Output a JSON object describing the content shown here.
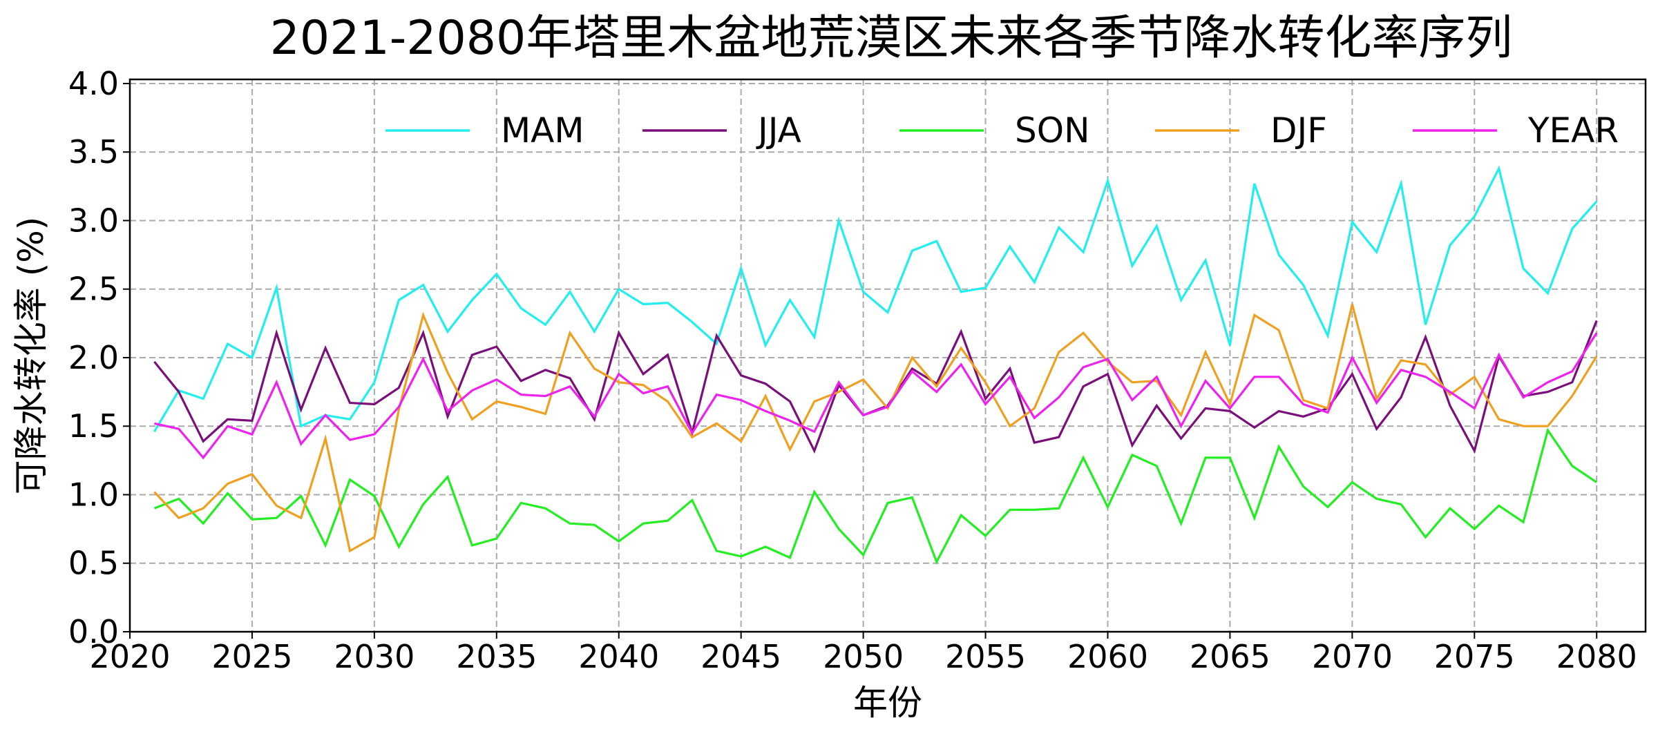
{
  "chart_data": {
    "type": "line",
    "title": "2021-2080年塔里木盆地荒漠区未来各季节降水转化率序列",
    "xlabel": "年份",
    "ylabel": "可降水转化率 (%)",
    "xlim": [
      2020,
      2082
    ],
    "ylim": [
      0,
      4.03
    ],
    "xticks": [
      2020,
      2025,
      2030,
      2035,
      2040,
      2045,
      2050,
      2055,
      2060,
      2065,
      2070,
      2075,
      2080
    ],
    "yticks": [
      "0.0",
      "0.5",
      "1.0",
      "1.5",
      "2.0",
      "2.5",
      "3.0",
      "3.5",
      "4.0"
    ],
    "grid": true,
    "legend_placement": "top",
    "x": [
      2021,
      2022,
      2023,
      2024,
      2025,
      2026,
      2027,
      2028,
      2029,
      2030,
      2031,
      2032,
      2033,
      2034,
      2035,
      2036,
      2037,
      2038,
      2039,
      2040,
      2041,
      2042,
      2043,
      2044,
      2045,
      2046,
      2047,
      2048,
      2049,
      2050,
      2051,
      2052,
      2053,
      2054,
      2055,
      2056,
      2057,
      2058,
      2059,
      2060,
      2061,
      2062,
      2063,
      2064,
      2065,
      2066,
      2067,
      2068,
      2069,
      2070,
      2071,
      2072,
      2073,
      2074,
      2075,
      2076,
      2077,
      2078,
      2079,
      2080
    ],
    "series": [
      {
        "name": "MAM",
        "color": "#22eeee",
        "values": [
          1.46,
          1.76,
          1.7,
          2.1,
          2.0,
          2.51,
          1.5,
          1.58,
          1.55,
          1.82,
          2.42,
          2.53,
          2.19,
          2.42,
          2.61,
          2.36,
          2.24,
          2.48,
          2.19,
          2.5,
          2.39,
          2.4,
          2.26,
          2.1,
          2.65,
          2.09,
          2.42,
          2.15,
          3.0,
          2.48,
          2.33,
          2.78,
          2.85,
          2.48,
          2.51,
          2.81,
          2.55,
          2.95,
          2.77,
          3.29,
          2.67,
          2.96,
          2.42,
          2.71,
          2.09,
          3.27,
          2.75,
          2.53,
          2.16,
          2.99,
          2.77,
          3.27,
          2.24,
          2.82,
          3.03,
          3.38,
          2.65,
          2.47,
          2.94,
          3.14
        ]
      },
      {
        "name": "JJA",
        "color": "#7a0e7a",
        "values": [
          1.97,
          1.75,
          1.39,
          1.55,
          1.54,
          2.18,
          1.62,
          2.07,
          1.67,
          1.66,
          1.78,
          2.18,
          1.57,
          2.02,
          2.08,
          1.83,
          1.91,
          1.85,
          1.55,
          2.18,
          1.88,
          2.02,
          1.45,
          2.16,
          1.87,
          1.81,
          1.68,
          1.32,
          1.8,
          1.58,
          1.65,
          1.92,
          1.81,
          2.19,
          1.7,
          1.92,
          1.38,
          1.42,
          1.79,
          1.88,
          1.36,
          1.65,
          1.41,
          1.63,
          1.61,
          1.49,
          1.61,
          1.57,
          1.63,
          1.88,
          1.48,
          1.71,
          2.15,
          1.65,
          1.32,
          2.01,
          1.72,
          1.75,
          1.82,
          2.27
        ]
      },
      {
        "name": "SON",
        "color": "#22ee22",
        "values": [
          0.9,
          0.97,
          0.79,
          1.01,
          0.82,
          0.83,
          0.99,
          0.63,
          1.11,
          0.99,
          0.62,
          0.93,
          1.13,
          0.63,
          0.68,
          0.94,
          0.9,
          0.79,
          0.78,
          0.66,
          0.79,
          0.81,
          0.96,
          0.59,
          0.55,
          0.62,
          0.54,
          1.02,
          0.75,
          0.56,
          0.94,
          0.98,
          0.51,
          0.85,
          0.7,
          0.89,
          0.89,
          0.9,
          1.27,
          0.91,
          1.29,
          1.21,
          0.79,
          1.27,
          1.27,
          0.83,
          1.35,
          1.06,
          0.91,
          1.09,
          0.97,
          0.93,
          0.69,
          0.9,
          0.75,
          0.92,
          0.8,
          1.47,
          1.21,
          1.09
        ]
      },
      {
        "name": "DJF",
        "color": "#f0a020",
        "values": [
          1.02,
          0.83,
          0.9,
          1.08,
          1.15,
          0.92,
          0.83,
          1.41,
          0.59,
          0.69,
          1.62,
          2.31,
          1.89,
          1.55,
          1.68,
          1.64,
          1.59,
          2.18,
          1.92,
          1.82,
          1.8,
          1.68,
          1.42,
          1.52,
          1.39,
          1.72,
          1.33,
          1.68,
          1.75,
          1.84,
          1.63,
          2.0,
          1.79,
          2.07,
          1.82,
          1.5,
          1.63,
          2.04,
          2.18,
          1.97,
          1.82,
          1.83,
          1.58,
          2.04,
          1.66,
          2.31,
          2.2,
          1.69,
          1.63,
          2.39,
          1.7,
          1.98,
          1.95,
          1.73,
          1.86,
          1.55,
          1.5,
          1.5,
          1.72,
          2.01
        ]
      },
      {
        "name": "YEAR",
        "color": "#ee22ee",
        "values": [
          1.52,
          1.48,
          1.27,
          1.5,
          1.44,
          1.82,
          1.37,
          1.58,
          1.4,
          1.44,
          1.64,
          1.99,
          1.61,
          1.76,
          1.84,
          1.73,
          1.72,
          1.79,
          1.57,
          1.88,
          1.74,
          1.79,
          1.45,
          1.73,
          1.69,
          1.61,
          1.54,
          1.46,
          1.82,
          1.58,
          1.64,
          1.9,
          1.75,
          1.95,
          1.66,
          1.86,
          1.56,
          1.71,
          1.93,
          1.99,
          1.69,
          1.86,
          1.5,
          1.83,
          1.63,
          1.86,
          1.86,
          1.66,
          1.6,
          2.0,
          1.67,
          1.91,
          1.86,
          1.75,
          1.63,
          2.02,
          1.71,
          1.82,
          1.9,
          2.18
        ]
      }
    ]
  }
}
